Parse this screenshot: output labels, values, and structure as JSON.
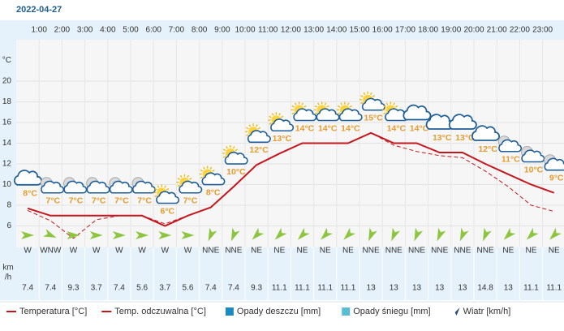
{
  "date": "2022-04-27",
  "chart_data": {
    "type": "line",
    "hour_labels": [
      "1:00",
      "2:00",
      "3:00",
      "4:00",
      "5:00",
      "6:00",
      "7:00",
      "8:00",
      "9:00",
      "10:00",
      "11:00",
      "12:00",
      "13:00",
      "14:00",
      "15:00",
      "16:00",
      "17:00",
      "18:00",
      "19:00",
      "20:00",
      "21:00",
      "22:00",
      "23:00"
    ],
    "y_unit": "°C",
    "ylim": [
      4,
      24
    ],
    "yticks": [
      6,
      8,
      10,
      12,
      14,
      16,
      18,
      20
    ],
    "grid": true,
    "series": [
      {
        "name": "Temperatura [°C]",
        "color": "#c4161c",
        "dashed": false,
        "values": [
          7.7,
          7.0,
          7.0,
          7.0,
          7.0,
          7.0,
          6.0,
          7.0,
          7.8,
          9.8,
          11.9,
          13.0,
          14.0,
          14.0,
          14.0,
          15.0,
          14.0,
          14.0,
          13.1,
          13.1,
          12.0,
          11.0,
          10.0,
          9.2
        ],
        "value_labels": [
          "8°C",
          "7°C",
          "7°C",
          "7°C",
          "7°C",
          "7°C",
          "6°C",
          "7°C",
          "8°C",
          "10°C",
          "12°C",
          "13°C",
          "14°C",
          "14°C",
          "14°C",
          "15°C",
          "14°C",
          "14°C",
          "13°C",
          "13°C",
          "12°C",
          "11°C",
          "10°C",
          "9°C"
        ]
      },
      {
        "name": "Temp. odczuwalna [°C]",
        "color": "#c4161c",
        "dashed": true,
        "values": [
          7.5,
          6.5,
          4.8,
          6.6,
          7.0,
          7.0,
          6.2,
          7.0,
          7.8,
          9.8,
          11.9,
          13.0,
          14.0,
          14.0,
          14.0,
          15.0,
          13.8,
          13.2,
          12.8,
          12.6,
          11.3,
          9.8,
          8.0,
          7.4
        ]
      }
    ],
    "sky": [
      "cloud",
      "night",
      "night",
      "night",
      "night",
      "night",
      "sun",
      "sun",
      "sun",
      "sun",
      "sun",
      "sun",
      "sun",
      "sun",
      "sun",
      "sun",
      "sun",
      "cloud",
      "cloud",
      "cloud",
      "cloud",
      "night",
      "night",
      "night"
    ],
    "wind": {
      "unit": [
        "km",
        "/h"
      ],
      "color": "#8cc63f",
      "directions": [
        "W",
        "WNW",
        "W",
        "W",
        "W",
        "W",
        "W",
        "W",
        "NNE",
        "NNE",
        "NE",
        "NE",
        "NE",
        "NE",
        "NE",
        "NNE",
        "NNE",
        "NNE",
        "NNE",
        "NNE",
        "NNE",
        "NE",
        "NE",
        "NE"
      ],
      "deg": [
        270,
        292.5,
        270,
        270,
        270,
        270,
        270,
        270,
        22.5,
        22.5,
        45,
        45,
        45,
        45,
        45,
        22.5,
        22.5,
        22.5,
        22.5,
        22.5,
        22.5,
        45,
        45,
        45
      ],
      "speeds": [
        7.4,
        7.4,
        9.3,
        3.7,
        7.4,
        5.6,
        3.7,
        5.6,
        7.4,
        7.4,
        9.3,
        11.1,
        11.1,
        11.1,
        11.1,
        13,
        13,
        13,
        13,
        13,
        14.8,
        13,
        11.1,
        11.1
      ]
    },
    "legend_extra": [
      {
        "name": "Opady deszczu [mm]",
        "color": "#1b8bbf",
        "shape": "square"
      },
      {
        "name": "Opady śniegu [mm]",
        "color": "#5bbcd6",
        "shape": "square"
      },
      {
        "name": "Wiatr [km/h]",
        "color": "#2a4f7a",
        "shape": "arrow"
      }
    ]
  }
}
